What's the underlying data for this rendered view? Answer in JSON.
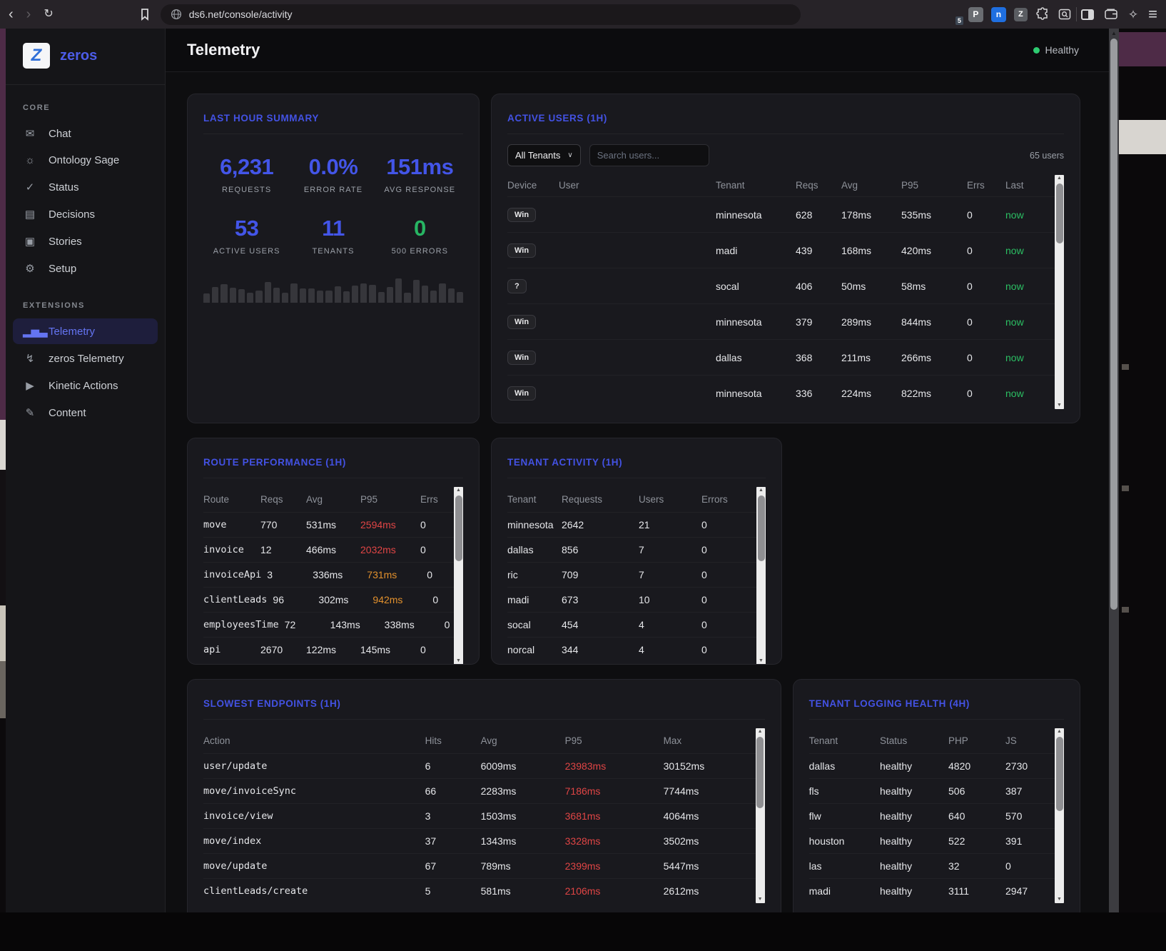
{
  "colors": {
    "accent": "#4352e4",
    "green": "#27b563",
    "red": "#e04545",
    "orange": "#e3912d",
    "healthy_dot": "#2ecc71"
  },
  "browser": {
    "url": "ds6.net/console/activity",
    "extensions": {
      "shield_badge": "5",
      "p_label": "P",
      "n_label": "n",
      "z_label": "Z"
    }
  },
  "sidebar": {
    "brand": "zeros",
    "logo_letter": "Z",
    "core_label": "CORE",
    "extensions_label": "EXTENSIONS",
    "core_items": [
      {
        "name": "sidebar-item-chat",
        "icon_name": "chat-icon",
        "glyph": "✉",
        "label": "Chat"
      },
      {
        "name": "sidebar-item-ontology-sage",
        "icon_name": "lightbulb-icon",
        "glyph": "☼",
        "label": "Ontology Sage"
      },
      {
        "name": "sidebar-item-status",
        "icon_name": "check-circle-icon",
        "glyph": "✓",
        "label": "Status"
      },
      {
        "name": "sidebar-item-decisions",
        "icon_name": "document-icon",
        "glyph": "▤",
        "label": "Decisions"
      },
      {
        "name": "sidebar-item-stories",
        "icon_name": "archive-icon",
        "glyph": "▣",
        "label": "Stories"
      },
      {
        "name": "sidebar-item-setup",
        "icon_name": "gear-icon",
        "glyph": "⚙",
        "label": "Setup"
      }
    ],
    "ext_items": [
      {
        "name": "sidebar-item-telemetry",
        "icon_name": "bar-chart-icon",
        "glyph": "▂▅▃",
        "label": "Telemetry",
        "active_class": "active"
      },
      {
        "name": "sidebar-item-zeros-telemetry",
        "icon_name": "lightning-icon",
        "glyph": "↯",
        "label": "zeros Telemetry"
      },
      {
        "name": "sidebar-item-kinetic-actions",
        "icon_name": "play-circle-icon",
        "glyph": "▶",
        "label": "Kinetic Actions"
      },
      {
        "name": "sidebar-item-content",
        "icon_name": "edit-icon",
        "glyph": "✎",
        "label": "Content"
      }
    ]
  },
  "header": {
    "title": "Telemetry",
    "status_label": "Healthy"
  },
  "cards": {
    "summary": {
      "title": "LAST HOUR SUMMARY",
      "stats": [
        {
          "value": "6,231",
          "label": "REQUESTS",
          "class": "c-blue"
        },
        {
          "value": "0.0%",
          "label": "ERROR RATE",
          "class": "c-blue"
        },
        {
          "value": "151ms",
          "label": "AVG RESPONSE",
          "class": "c-blue"
        },
        {
          "value": "53",
          "label": "ACTIVE USERS",
          "class": "c-blue"
        },
        {
          "value": "11",
          "label": "TENANTS",
          "class": "c-blue"
        },
        {
          "value": "0",
          "label": "500 ERRORS",
          "class": "c-green"
        }
      ],
      "bars": [
        35,
        62,
        72,
        58,
        52,
        40,
        48,
        80,
        58,
        38,
        74,
        55,
        55,
        48,
        48,
        64,
        45,
        66,
        76,
        70,
        42,
        62,
        95,
        38,
        88,
        66,
        46,
        76,
        55,
        42
      ]
    },
    "active_users": {
      "title": "ACTIVE USERS (1H)",
      "tenant_filter": "All Tenants",
      "search_placeholder": "Search users...",
      "user_count": "65 users",
      "columns": [
        "Device",
        "User",
        "Tenant",
        "Reqs",
        "Avg",
        "P95",
        "Errs",
        "Last"
      ],
      "rows": [
        {
          "device": "Win",
          "tenant": "minnesota",
          "reqs": "628",
          "avg": "178ms",
          "p95": "535ms",
          "errs": "0",
          "last": "now",
          "mask1": "width:100px",
          "mask2": "width:72px"
        },
        {
          "device": "Win",
          "tenant": "madi",
          "reqs": "439",
          "avg": "168ms",
          "p95": "420ms",
          "errs": "0",
          "last": "now",
          "mask1": "width:95px",
          "mask2": "width:60px"
        },
        {
          "device": "?",
          "tenant": "socal",
          "reqs": "406",
          "avg": "50ms",
          "p95": "58ms",
          "errs": "0",
          "last": "now",
          "mask1": "width:72px",
          "mask2": "width:10px"
        },
        {
          "device": "Win",
          "tenant": "minnesota",
          "reqs": "379",
          "avg": "289ms",
          "p95": "844ms",
          "errs": "0",
          "last": "now",
          "mask1": "width:62px",
          "mask2": "width:58px"
        },
        {
          "device": "Win",
          "tenant": "dallas",
          "reqs": "368",
          "avg": "211ms",
          "p95": "266ms",
          "errs": "0",
          "last": "now",
          "mask1": "width:85px",
          "mask2": "width:70px"
        },
        {
          "device": "Win",
          "tenant": "minnesota",
          "reqs": "336",
          "avg": "224ms",
          "p95": "822ms",
          "errs": "0",
          "last": "now",
          "mask1": "width:78px",
          "mask2": "width:62px"
        }
      ]
    },
    "routes": {
      "title": "ROUTE PERFORMANCE (1H)",
      "columns": [
        "Route",
        "Reqs",
        "Avg",
        "P95",
        "Errs"
      ],
      "rows": [
        {
          "route": "move",
          "reqs": "770",
          "avg": "531ms",
          "p95": "2594ms",
          "p95_class": "c-red",
          "errs": "0"
        },
        {
          "route": "invoice",
          "reqs": "12",
          "avg": "466ms",
          "p95": "2032ms",
          "p95_class": "c-red",
          "errs": "0"
        },
        {
          "route": "invoiceApi",
          "reqs": "3",
          "avg": "336ms",
          "p95": "731ms",
          "p95_class": "c-orange",
          "errs": "0"
        },
        {
          "route": "clientLeads",
          "reqs": "96",
          "avg": "302ms",
          "p95": "942ms",
          "p95_class": "c-orange",
          "errs": "0"
        },
        {
          "route": "employeesTime",
          "reqs": "72",
          "avg": "143ms",
          "p95": "338ms",
          "errs": "0"
        },
        {
          "route": "api",
          "reqs": "2670",
          "avg": "122ms",
          "p95": "145ms",
          "errs": "0"
        }
      ]
    },
    "tenants": {
      "title": "TENANT ACTIVITY (1H)",
      "columns": [
        "Tenant",
        "Requests",
        "Users",
        "Errors"
      ],
      "rows": [
        {
          "tenant": "minnesota",
          "requests": "2642",
          "users": "21",
          "errors": "0"
        },
        {
          "tenant": "dallas",
          "requests": "856",
          "users": "7",
          "errors": "0"
        },
        {
          "tenant": "ric",
          "requests": "709",
          "users": "7",
          "errors": "0"
        },
        {
          "tenant": "madi",
          "requests": "673",
          "users": "10",
          "errors": "0"
        },
        {
          "tenant": "socal",
          "requests": "454",
          "users": "4",
          "errors": "0"
        },
        {
          "tenant": "norcal",
          "requests": "344",
          "users": "4",
          "errors": "0"
        }
      ]
    },
    "endpoints": {
      "title": "SLOWEST ENDPOINTS (1H)",
      "columns": [
        "Action",
        "Hits",
        "Avg",
        "P95",
        "Max"
      ],
      "rows": [
        {
          "action": "user/update",
          "hits": "6",
          "avg": "6009ms",
          "p95": "23983ms",
          "p95_class": "c-red",
          "max": "30152ms"
        },
        {
          "action": "move/invoiceSync",
          "hits": "66",
          "avg": "2283ms",
          "p95": "7186ms",
          "p95_class": "c-red",
          "max": "7744ms"
        },
        {
          "action": "invoice/view",
          "hits": "3",
          "avg": "1503ms",
          "p95": "3681ms",
          "p95_class": "c-red",
          "max": "4064ms"
        },
        {
          "action": "move/index",
          "hits": "37",
          "avg": "1343ms",
          "p95": "3328ms",
          "p95_class": "c-red",
          "max": "3502ms"
        },
        {
          "action": "move/update",
          "hits": "67",
          "avg": "789ms",
          "p95": "2399ms",
          "p95_class": "c-red",
          "max": "5447ms"
        },
        {
          "action": "clientLeads/create",
          "hits": "5",
          "avg": "581ms",
          "p95": "2106ms",
          "p95_class": "c-red",
          "max": "2612ms"
        }
      ]
    },
    "logging": {
      "title": "TENANT LOGGING HEALTH (4H)",
      "columns": [
        "Tenant",
        "Status",
        "PHP",
        "JS"
      ],
      "rows": [
        {
          "tenant": "dallas",
          "status": "healthy",
          "php": "4820",
          "js": "2730"
        },
        {
          "tenant": "fls",
          "status": "healthy",
          "php": "506",
          "js": "387"
        },
        {
          "tenant": "flw",
          "status": "healthy",
          "php": "640",
          "js": "570"
        },
        {
          "tenant": "houston",
          "status": "healthy",
          "php": "522",
          "js": "391"
        },
        {
          "tenant": "las",
          "status": "healthy",
          "php": "32",
          "js": "0"
        },
        {
          "tenant": "madi",
          "status": "healthy",
          "php": "3111",
          "js": "2947"
        }
      ]
    }
  }
}
